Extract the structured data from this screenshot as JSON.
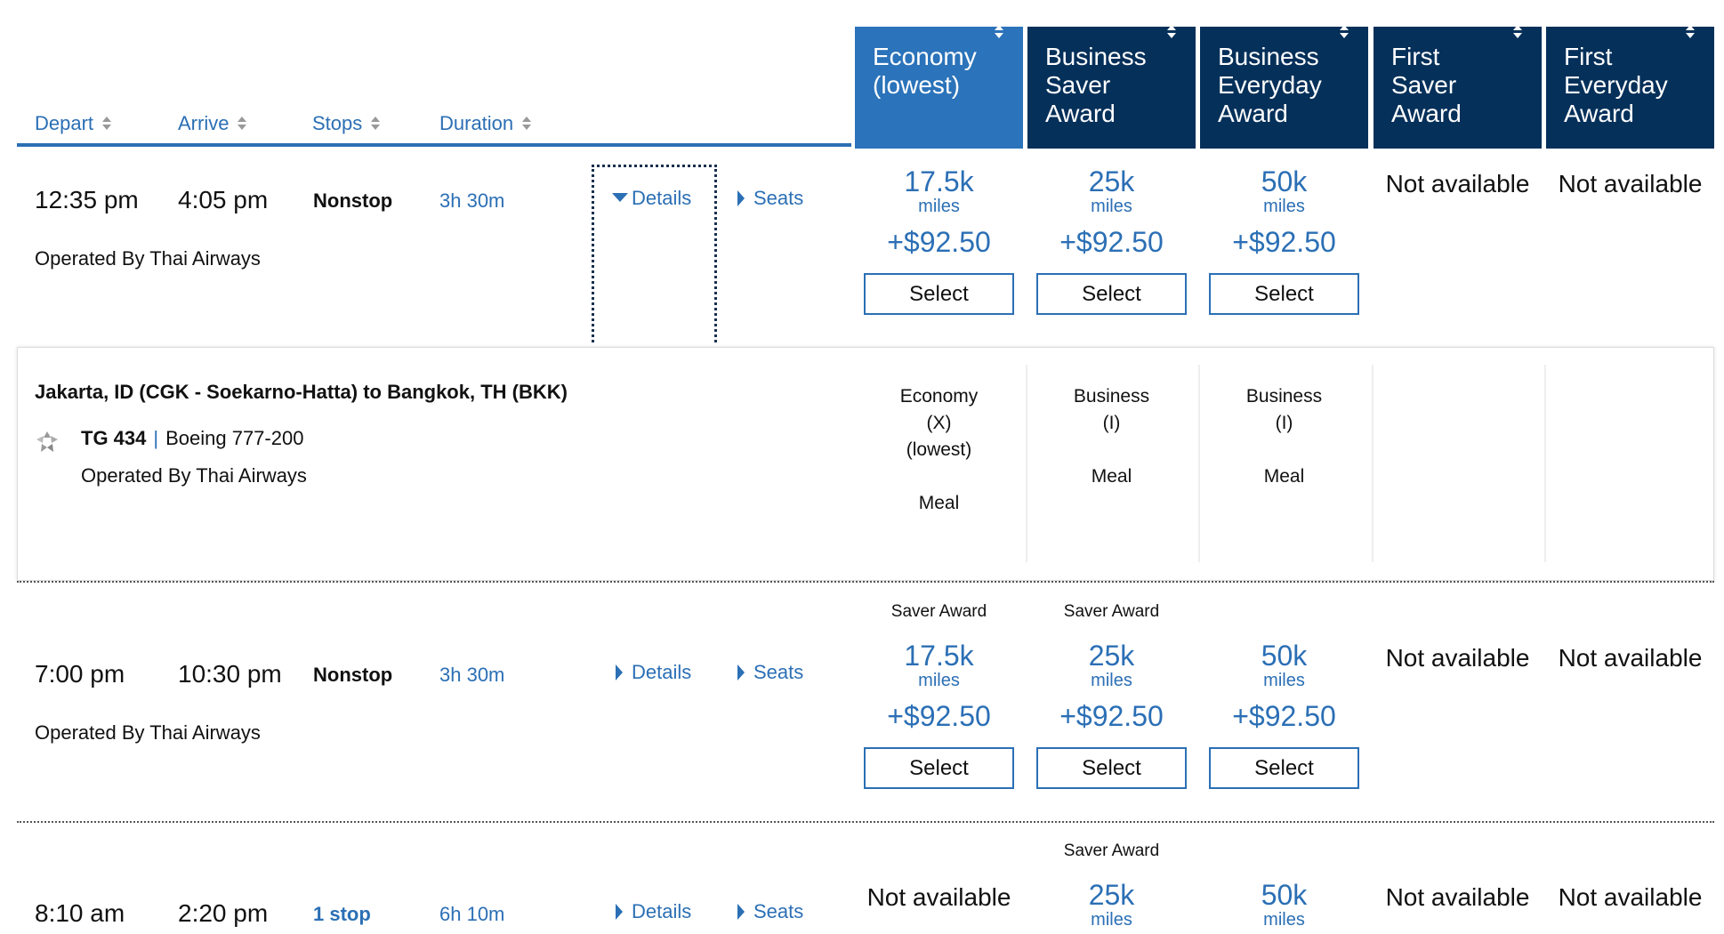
{
  "sort_headers": [
    {
      "label": "Depart"
    },
    {
      "label": "Arrive"
    },
    {
      "label": "Stops"
    },
    {
      "label": "Duration"
    }
  ],
  "fare_columns": [
    {
      "label": "Economy (lowest)",
      "active": true
    },
    {
      "label": "Business Saver Award",
      "active": false
    },
    {
      "label": "Business Everyday Award",
      "active": false
    },
    {
      "label": "First Saver Award",
      "active": false
    },
    {
      "label": "First Everyday Award",
      "active": false
    }
  ],
  "colors": {
    "accent": "#2b6fb5",
    "header_dark": "#05305a",
    "header_active": "#2b73ba"
  },
  "flights": [
    {
      "depart": "12:35 pm",
      "arrive": "4:05 pm",
      "stops": "Nonstop",
      "duration": "3h 30m",
      "operated_by": "Operated By Thai Airways",
      "details_label": "Details",
      "details_expanded": true,
      "seats_label": "Seats",
      "fares": [
        {
          "badge": "",
          "miles": "17.5k",
          "miles_label": "miles",
          "price": "+$92.50",
          "select": "Select"
        },
        {
          "badge": "",
          "miles": "25k",
          "miles_label": "miles",
          "price": "+$92.50",
          "select": "Select"
        },
        {
          "badge": "",
          "miles": "50k",
          "miles_label": "miles",
          "price": "+$92.50",
          "select": "Select"
        },
        {
          "na": "Not available"
        },
        {
          "na": "Not available"
        }
      ]
    },
    {
      "depart": "7:00 pm",
      "arrive": "10:30 pm",
      "stops": "Nonstop",
      "duration": "3h 30m",
      "operated_by": "Operated By Thai Airways",
      "details_label": "Details",
      "details_expanded": false,
      "seats_label": "Seats",
      "fares": [
        {
          "badge": "Saver Award",
          "miles": "17.5k",
          "miles_label": "miles",
          "price": "+$92.50",
          "select": "Select"
        },
        {
          "badge": "Saver Award",
          "miles": "25k",
          "miles_label": "miles",
          "price": "+$92.50",
          "select": "Select"
        },
        {
          "badge": "",
          "miles": "50k",
          "miles_label": "miles",
          "price": "+$92.50",
          "select": "Select"
        },
        {
          "na": "Not available"
        },
        {
          "na": "Not available"
        }
      ]
    },
    {
      "depart": "8:10 am",
      "arrive": "2:20 pm",
      "stops": "1 stop",
      "duration": "6h 10m",
      "operated_by": "",
      "details_label": "Details",
      "details_expanded": false,
      "seats_label": "Seats",
      "fares": [
        {
          "na": "Not available"
        },
        {
          "badge": "Saver Award",
          "miles": "25k",
          "miles_label": "miles"
        },
        {
          "badge": "",
          "miles": "50k",
          "miles_label": "miles"
        },
        {
          "na": "Not available"
        },
        {
          "na": "Not available"
        }
      ]
    }
  ],
  "detail_panel": {
    "route": "Jakarta, ID (CGK - Soekarno-Hatta) to Bangkok, TH (BKK)",
    "flight_number": "TG 434",
    "aircraft": "Boeing 777-200",
    "operated_by": "Operated By Thai Airways",
    "logo_icon": "star-alliance-icon",
    "cabins": [
      {
        "lines": [
          "Economy",
          "(X)",
          "(lowest)",
          "",
          "Meal"
        ]
      },
      {
        "lines": [
          "Business",
          "(I)",
          "",
          "Meal"
        ]
      },
      {
        "lines": [
          "Business",
          "(I)",
          "",
          "Meal"
        ]
      },
      {
        "lines": []
      },
      {
        "lines": []
      }
    ]
  }
}
